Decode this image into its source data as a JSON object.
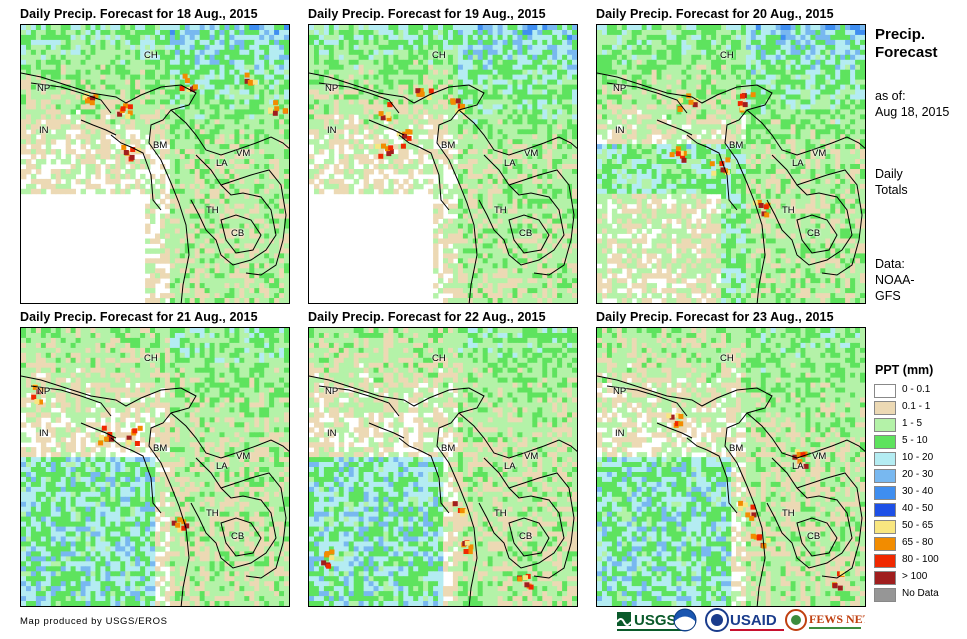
{
  "panels": [
    {
      "title": "Daily Precip. Forecast for 18 Aug., 2015",
      "labels": {
        "CH": "CH",
        "NP": "NP",
        "IN": "IN",
        "BM": "BM",
        "LA": "LA",
        "VM": "VM",
        "TH": "TH",
        "CB": "CB"
      }
    },
    {
      "title": "Daily Precip. Forecast for 19 Aug., 2015",
      "labels": {
        "CH": "CH",
        "NP": "NP",
        "IN": "IN",
        "BM": "BM",
        "LA": "LA",
        "VM": "VM",
        "TH": "TH",
        "CB": "CB"
      }
    },
    {
      "title": "Daily Precip. Forecast for 20 Aug., 2015",
      "labels": {
        "CH": "CH",
        "NP": "NP",
        "IN": "IN",
        "BM": "BM",
        "LA": "LA",
        "VM": "VM",
        "TH": "TH",
        "CB": "CB"
      }
    },
    {
      "title": "Daily Precip. Forecast for 21 Aug., 2015",
      "labels": {
        "CH": "CH",
        "NP": "NP",
        "IN": "IN",
        "BM": "BM",
        "LA": "LA",
        "VM": "VM",
        "TH": "TH",
        "CB": "CB"
      }
    },
    {
      "title": "Daily Precip. Forecast for 22 Aug., 2015",
      "labels": {
        "CH": "CH",
        "NP": "NP",
        "IN": "IN",
        "BM": "BM",
        "LA": "LA",
        "VM": "VM",
        "TH": "TH",
        "CB": "CB"
      }
    },
    {
      "title": "Daily Precip. Forecast for 23 Aug., 2015",
      "labels": {
        "CH": "CH",
        "NP": "NP",
        "IN": "IN",
        "BM": "BM",
        "LA": "LA",
        "VM": "VM",
        "TH": "TH",
        "CB": "CB"
      }
    }
  ],
  "side": {
    "title_line1": "Precip.",
    "title_line2": "Forecast",
    "asof_line1": "as of:",
    "asof_line2": "Aug 18, 2015",
    "totals_line1": "Daily",
    "totals_line2": "Totals",
    "data_line1": "Data:",
    "data_line2": "NOAA-",
    "data_line3": "GFS"
  },
  "legend": {
    "title": "PPT (mm)",
    "items": [
      {
        "label": "0 - 0.1",
        "color": "#ffffff"
      },
      {
        "label": "0.1 - 1",
        "color": "#ecd9b4"
      },
      {
        "label": "1 - 5",
        "color": "#b4f2a8"
      },
      {
        "label": "5 - 10",
        "color": "#5ee35e"
      },
      {
        "label": "10 - 20",
        "color": "#b4ecf2"
      },
      {
        "label": "20 - 30",
        "color": "#78b8f0"
      },
      {
        "label": "30 - 40",
        "color": "#3f8ef0"
      },
      {
        "label": "40 - 50",
        "color": "#1e50e6"
      },
      {
        "label": "50 - 65",
        "color": "#f8e680"
      },
      {
        "label": "65 - 80",
        "color": "#f28c00"
      },
      {
        "label": "80 - 100",
        "color": "#f02800"
      },
      {
        "label": "> 100",
        "color": "#a01e1e"
      },
      {
        "label": "No Data",
        "color": "#969696"
      }
    ]
  },
  "credit": "Map produced by USGS/EROS",
  "logos": {
    "usgs": "USGS",
    "usaid": "USAID",
    "fewsnet": "FEWS NET"
  }
}
